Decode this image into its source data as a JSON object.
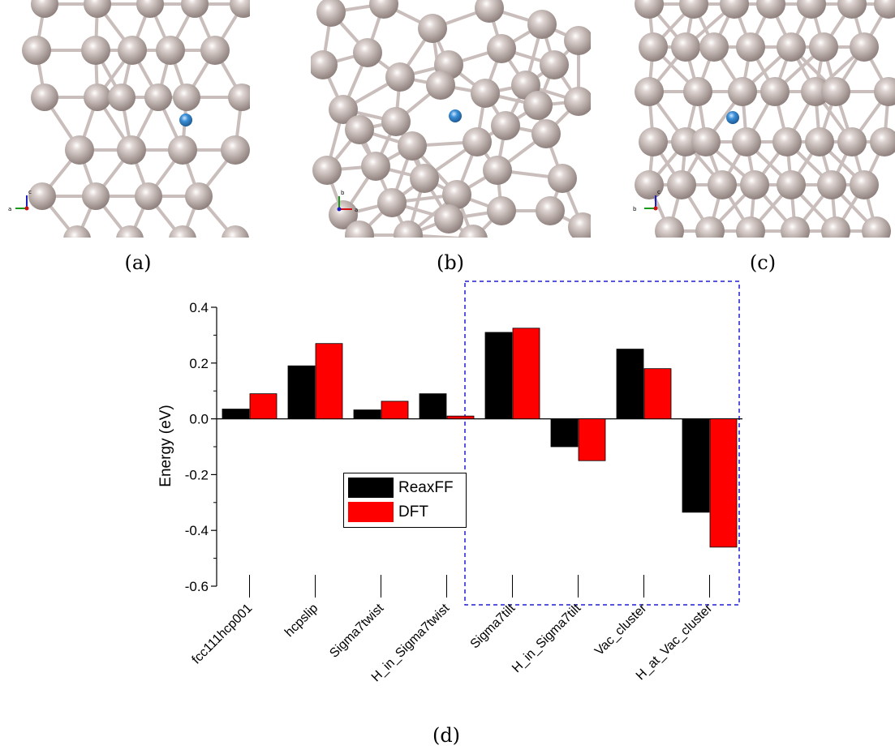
{
  "captions": {
    "a": "(a)",
    "b": "(b)",
    "c": "(c)",
    "d": "(d)"
  },
  "panels": {
    "a": {
      "axis_labels": [
        "a",
        "c"
      ]
    },
    "b": {
      "axis_labels": [
        "a",
        "b"
      ]
    },
    "c": {
      "axis_labels": [
        "b",
        "c"
      ]
    }
  },
  "colors": {
    "atom": "#bdb1ad",
    "hydrogen": "#3b8fd6",
    "bond": "#c9bebb",
    "reaxff": "#000000",
    "dft": "#ff0000",
    "highlight_box": "#1f1fd6"
  },
  "chart_data": {
    "type": "bar",
    "title": "",
    "xlabel": "",
    "ylabel": "Energy (eV)",
    "ylim": [
      -0.6,
      0.4
    ],
    "yticks": [
      "0.4",
      "0.2",
      "0.0",
      "-0.2",
      "-0.4",
      "-0.6"
    ],
    "ytick_values": [
      0.4,
      0.2,
      0.0,
      -0.2,
      -0.4,
      -0.6
    ],
    "categories": [
      "fcc111hcp001",
      "hcpslip",
      "Sigma7twist",
      "H_in_Sigma7twist",
      "Sigma7tilt",
      "H_in_Sigma7tilt",
      "Vac_cluster",
      "H_at_Vac_cluster"
    ],
    "series": [
      {
        "name": "ReaxFF",
        "color": "#000000",
        "values": [
          0.035,
          0.19,
          0.032,
          0.09,
          0.31,
          -0.1,
          0.25,
          -0.335
        ]
      },
      {
        "name": "DFT",
        "color": "#ff0000",
        "values": [
          0.09,
          0.27,
          0.063,
          0.01,
          0.325,
          -0.15,
          0.18,
          -0.46
        ]
      }
    ],
    "legend": {
      "placement": "center-left"
    },
    "highlight_range": [
      "Sigma7tilt",
      "H_at_Vac_cluster"
    ],
    "grid": false
  }
}
